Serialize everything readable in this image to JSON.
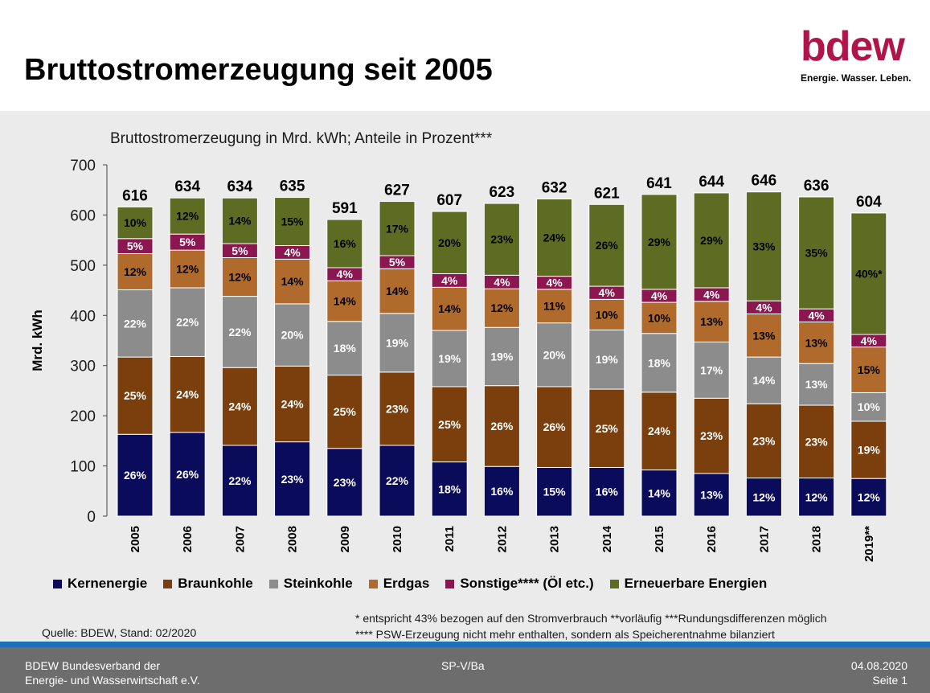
{
  "header": {
    "title": "Bruttostromerzeugung seit 2005",
    "logo_word": "bdew",
    "logo_tagline": "Energie. Wasser. Leben."
  },
  "colors": {
    "kernenergie": "#0b0b5c",
    "braunkohle": "#7a3f0d",
    "steinkohle": "#8c8c8c",
    "erdgas": "#b06a2c",
    "sonstige": "#8b1650",
    "erneuerbare": "#5d6b23",
    "logo": "#b0154a",
    "accent_bar": "#1f6fb5",
    "footer_bg": "#6d6d6d",
    "panel_bg": "#ebebeb"
  },
  "chart_data": {
    "type": "bar",
    "stacked": true,
    "title": "Bruttostromerzeugung in Mrd. kWh; Anteile in Prozent***",
    "ylabel": "Mrd. kWh",
    "xlabel": "",
    "ylim": [
      0,
      700
    ],
    "yticks": [
      0,
      100,
      200,
      300,
      400,
      500,
      600,
      700
    ],
    "grid": false,
    "legend_position": "bottom",
    "categories": [
      "2005",
      "2006",
      "2007",
      "2008",
      "2009",
      "2010",
      "2011",
      "2012",
      "2013",
      "2014",
      "2015",
      "2016",
      "2017",
      "2018",
      "2019**"
    ],
    "totals": [
      616,
      634,
      634,
      635,
      591,
      627,
      607,
      623,
      632,
      621,
      641,
      644,
      646,
      636,
      604
    ],
    "series": [
      {
        "name": "Kernenergie",
        "color": "#0b0b5c",
        "label_color": "#ffffff",
        "labels": [
          "26%",
          "26%",
          "22%",
          "23%",
          "23%",
          "22%",
          "18%",
          "16%",
          "15%",
          "16%",
          "14%",
          "13%",
          "12%",
          "12%",
          "12%"
        ],
        "values": [
          163,
          167,
          141,
          148,
          135,
          141,
          108,
          99,
          97,
          97,
          92,
          85,
          76,
          76,
          75
        ]
      },
      {
        "name": "Braunkohle",
        "color": "#7a3f0d",
        "label_color": "#ffffff",
        "labels": [
          "25%",
          "24%",
          "24%",
          "24%",
          "25%",
          "23%",
          "25%",
          "26%",
          "26%",
          "25%",
          "24%",
          "23%",
          "23%",
          "23%",
          "19%"
        ],
        "values": [
          154,
          151,
          155,
          151,
          146,
          146,
          150,
          161,
          161,
          156,
          155,
          150,
          148,
          145,
          114
        ]
      },
      {
        "name": "Steinkohle",
        "color": "#8c8c8c",
        "label_color": "#ffffff",
        "labels": [
          "22%",
          "22%",
          "22%",
          "20%",
          "18%",
          "19%",
          "19%",
          "19%",
          "20%",
          "19%",
          "18%",
          "17%",
          "14%",
          "13%",
          "10%"
        ],
        "values": [
          134,
          137,
          142,
          124,
          107,
          117,
          112,
          116,
          127,
          118,
          117,
          112,
          93,
          83,
          57
        ]
      },
      {
        "name": "Erdgas",
        "color": "#b06a2c",
        "label_color": "#000000",
        "labels": [
          "12%",
          "12%",
          "12%",
          "14%",
          "14%",
          "14%",
          "14%",
          "12%",
          "11%",
          "10%",
          "10%",
          "13%",
          "13%",
          "13%",
          "15%"
        ],
        "values": [
          72,
          75,
          77,
          89,
          81,
          89,
          86,
          77,
          67,
          61,
          62,
          81,
          86,
          83,
          91
        ]
      },
      {
        "name": "Sonstige**** (Öl etc.)",
        "color": "#8b1650",
        "label_color": "#ffffff",
        "labels": [
          "5%",
          "5%",
          "5%",
          "4%",
          "4%",
          "5%",
          "4%",
          "4%",
          "4%",
          "4%",
          "4%",
          "4%",
          "4%",
          "4%",
          "4%"
        ],
        "values": [
          30,
          32,
          28,
          27,
          26,
          26,
          27,
          27,
          26,
          26,
          26,
          27,
          26,
          26,
          25
        ]
      },
      {
        "name": "Erneuerbare Energien",
        "color": "#5d6b23",
        "label_color": "#000000",
        "labels": [
          "10%",
          "12%",
          "14%",
          "15%",
          "16%",
          "17%",
          "20%",
          "23%",
          "24%",
          "26%",
          "29%",
          "29%",
          "33%",
          "35%",
          "40%*"
        ],
        "values": [
          63,
          72,
          91,
          96,
          96,
          108,
          124,
          143,
          154,
          163,
          189,
          189,
          217,
          223,
          242
        ]
      }
    ]
  },
  "footnotes": {
    "source": "Quelle: BDEW, Stand: 02/2020",
    "note1": "* entspricht 43% bezogen auf den Stromverbrauch **vorläufig ***Rundungsdifferenzen möglich",
    "note2": "**** PSW-Erzeugung nicht mehr enthalten, sondern als Speicherentnahme bilanziert"
  },
  "footer": {
    "org_line1": "BDEW Bundesverband der",
    "org_line2": "Energie- und Wasserwirtschaft e.V.",
    "center": "SP-V/Ba",
    "date": "04.08.2020",
    "page": "Seite 1"
  }
}
